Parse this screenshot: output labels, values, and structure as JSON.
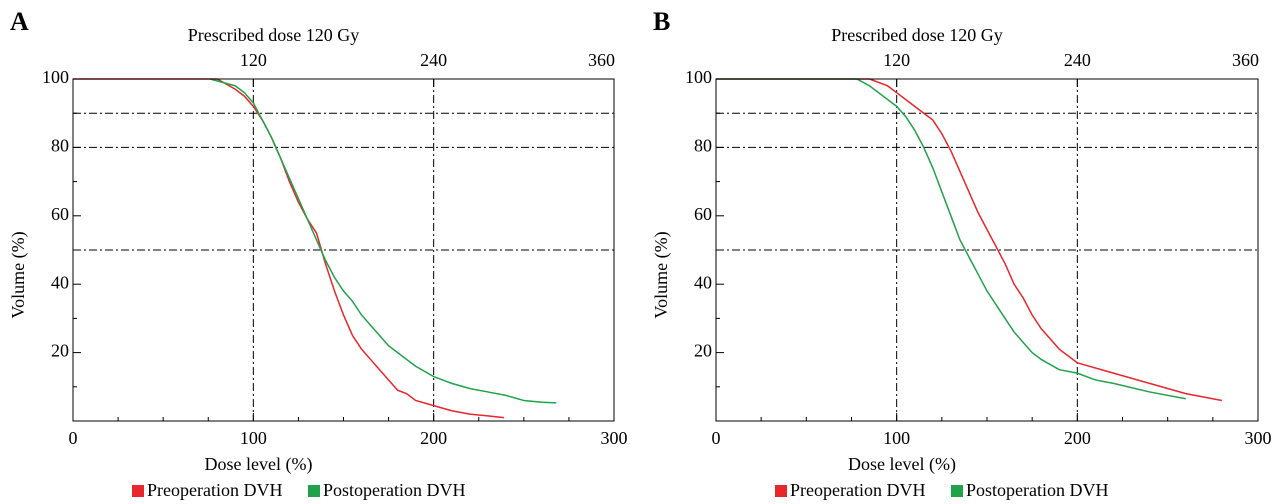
{
  "chart_data": [
    {
      "type": "line",
      "panel_label": "A",
      "top_axis_label": "Prescribed dose 120 Gy",
      "xlabel": "Dose level (%)",
      "ylabel": "Volume (%)",
      "xlim": [
        0,
        300
      ],
      "xticks": [
        0,
        100,
        200,
        300
      ],
      "x_minor_ticks": [
        25,
        50,
        75,
        125,
        150,
        175,
        225,
        250,
        275
      ],
      "x2lim": [
        0,
        360
      ],
      "x2ticks": [
        120,
        240,
        360
      ],
      "ylim": [
        0,
        100
      ],
      "yticks": [
        20,
        40,
        60,
        80,
        100
      ],
      "y_minor_ticks": [
        10,
        30,
        50,
        70,
        90
      ],
      "hlines": [
        90,
        80,
        50
      ],
      "vlines": [
        100,
        200
      ],
      "series": [
        {
          "name": "Preoperation DVH",
          "color": "#e8262b",
          "x": [
            0,
            80,
            90,
            95,
            100,
            105,
            110,
            115,
            120,
            125,
            130,
            135,
            140,
            145,
            150,
            155,
            160,
            165,
            170,
            175,
            180,
            185,
            190,
            200,
            210,
            220,
            230,
            239
          ],
          "values": [
            100,
            100,
            97,
            95,
            92,
            88,
            83,
            77,
            70,
            64,
            59,
            55,
            46,
            38,
            31,
            25,
            21,
            18,
            15,
            12,
            9,
            8,
            6,
            4.5,
            3,
            2,
            1.5,
            1
          ]
        },
        {
          "name": "Postoperation DVH",
          "color": "#1fa24a",
          "x": [
            76,
            90,
            95,
            100,
            105,
            110,
            115,
            120,
            125,
            130,
            135,
            140,
            145,
            150,
            155,
            160,
            165,
            170,
            175,
            180,
            185,
            190,
            200,
            210,
            220,
            230,
            240,
            250,
            260,
            268
          ],
          "values": [
            100,
            98,
            96,
            93,
            88,
            83,
            77,
            71,
            65,
            59,
            53,
            47,
            42,
            38,
            35,
            31,
            28,
            25,
            22,
            20,
            18,
            16,
            13,
            11,
            9.5,
            8.5,
            7.5,
            6,
            5.5,
            5.3
          ]
        }
      ]
    },
    {
      "type": "line",
      "panel_label": "B",
      "top_axis_label": "Prescribed dose 120 Gy",
      "xlabel": "Dose level (%)",
      "ylabel": "Volume (%)",
      "xlim": [
        0,
        300
      ],
      "xticks": [
        0,
        100,
        200,
        300
      ],
      "x_minor_ticks": [
        25,
        50,
        75,
        125,
        150,
        175,
        225,
        250,
        275
      ],
      "x2lim": [
        0,
        360
      ],
      "x2ticks": [
        120,
        240,
        360
      ],
      "ylim": [
        0,
        100
      ],
      "yticks": [
        20,
        40,
        60,
        80,
        100
      ],
      "y_minor_ticks": [
        10,
        30,
        50,
        70,
        90
      ],
      "hlines": [
        90,
        80,
        50
      ],
      "vlines": [
        100,
        200
      ],
      "series": [
        {
          "name": "Preoperation DVH",
          "color": "#e8262b",
          "x": [
            0,
            85,
            95,
            100,
            110,
            120,
            125,
            130,
            135,
            140,
            145,
            150,
            155,
            160,
            165,
            170,
            175,
            180,
            185,
            190,
            195,
            200,
            220,
            240,
            260,
            280
          ],
          "values": [
            100,
            100,
            98,
            96,
            92,
            88,
            84,
            79,
            73,
            67,
            61,
            56,
            51,
            46,
            40,
            36,
            31,
            27,
            24,
            21,
            19,
            17,
            14,
            11,
            8,
            6
          ]
        },
        {
          "name": "Postoperation DVH",
          "color": "#1fa24a",
          "x": [
            0,
            78,
            85,
            90,
            100,
            105,
            110,
            115,
            120,
            125,
            130,
            135,
            140,
            145,
            150,
            155,
            160,
            165,
            170,
            175,
            180,
            190,
            200,
            205,
            210,
            220,
            240,
            260
          ],
          "values": [
            100,
            100,
            98,
            96,
            92,
            89,
            85,
            80,
            74,
            67,
            60,
            53,
            48,
            43,
            38,
            34,
            30,
            26,
            23,
            20,
            18,
            15,
            14,
            13,
            12,
            11,
            8.5,
            6.5
          ]
        }
      ]
    }
  ]
}
